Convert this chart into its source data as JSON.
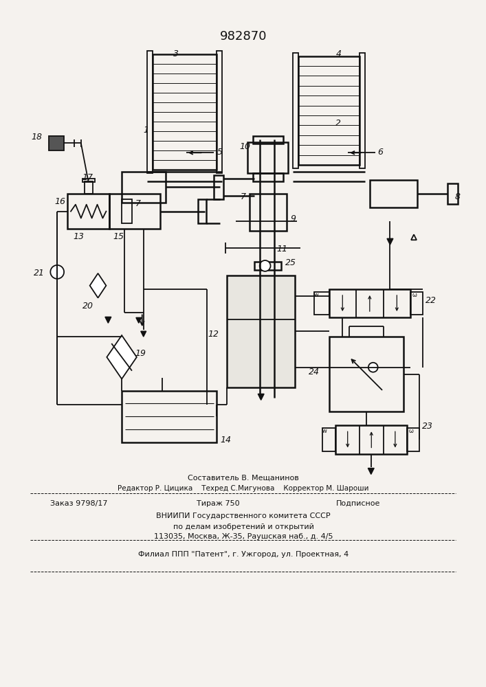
{
  "patent_number": "982870",
  "bg": "#f5f2ee",
  "lc": "#111111",
  "footer_1": "Составитель В. Мещанинов",
  "footer_2": "Редактор Р. Цицика    Техред С.Мигунова    Корректор М. Шароши",
  "footer_3": "Заказ 9798/17",
  "footer_4": "Тираж 750",
  "footer_5": "Подписное",
  "footer_6": "ВНИИПИ Государственного комитета СССР",
  "footer_7": "по делам изобретений и открытий",
  "footer_8": "113035, Москва, Ж-35, Раушская наб., д. 4/5",
  "footer_9": "Филиал ППП \"Патент\", г. Ужгород, ул. Проектная, 4"
}
